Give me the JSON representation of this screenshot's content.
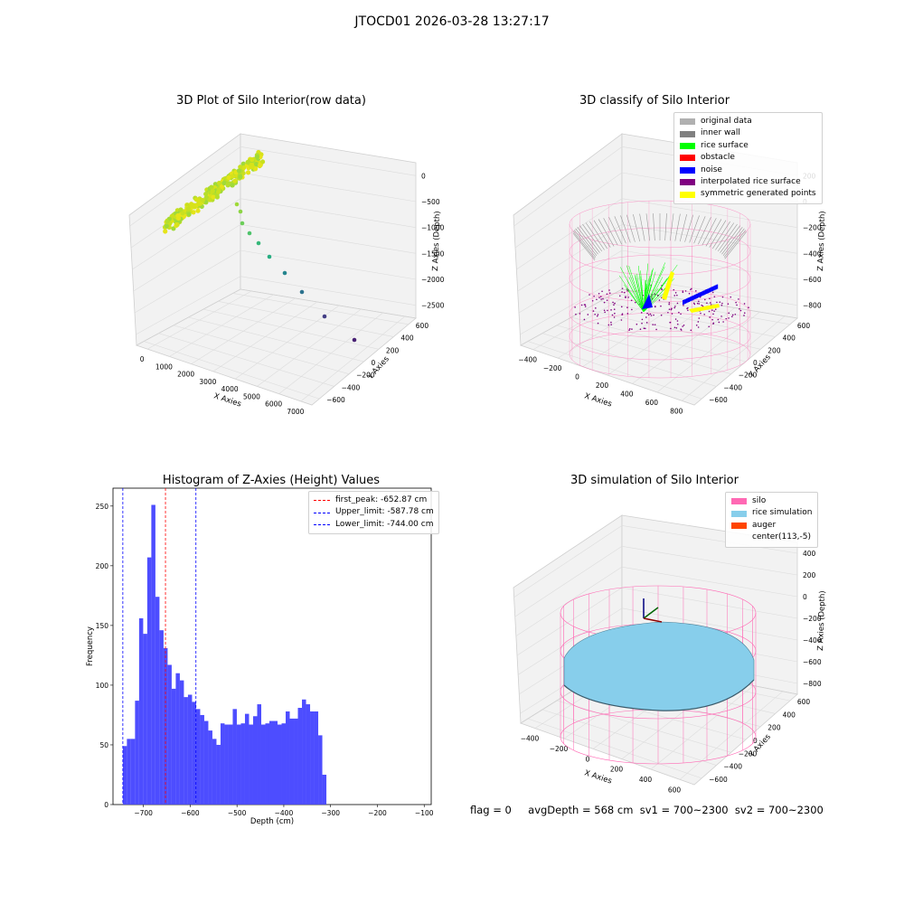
{
  "suptitle": "JTOCD01 2026-03-28 13:27:17",
  "panels": {
    "raw": {
      "title": "3D Plot of Silo Interior(row data)",
      "xlabel": "X Axies",
      "ylabel": "Y Axies",
      "zlabel": "Z Axies (Depth)",
      "xticks": [
        "0",
        "1000",
        "2000",
        "3000",
        "4000",
        "5000",
        "6000",
        "7000"
      ],
      "yticks": [
        "600",
        "400",
        "200",
        "0",
        "−200",
        "−400",
        "−600"
      ],
      "zticks": [
        "0",
        "−500",
        "−1000",
        "−1500",
        "−2000",
        "−2500"
      ]
    },
    "classify": {
      "title": "3D classify of Silo Interior",
      "xlabel": "X Axies",
      "ylabel": "Y Axies",
      "zlabel": "Z Axies (Depth)",
      "xticks": [
        "−400",
        "−200",
        "0",
        "200",
        "400",
        "600",
        "800"
      ],
      "yticks": [
        "600",
        "400",
        "200",
        "0",
        "−200",
        "−400",
        "−600"
      ],
      "zticks": [
        "200",
        "0",
        "−200",
        "−400",
        "−600",
        "−800"
      ],
      "legend": [
        {
          "label": "original data",
          "color": "#b0b0b0"
        },
        {
          "label": "inner wall",
          "color": "#808080"
        },
        {
          "label": "rice surface",
          "color": "#00ff00"
        },
        {
          "label": "obstacle",
          "color": "#ff0000"
        },
        {
          "label": "noise",
          "color": "#0000ff"
        },
        {
          "label": "interpolated rice surface",
          "color": "#800080"
        },
        {
          "label": "symmetric generated points",
          "color": "#ffff00"
        }
      ]
    },
    "simulation": {
      "title": "3D simulation of Silo Interior",
      "xlabel": "X Axies",
      "ylabel": "Y Axies",
      "zlabel": "Z Axies (Depth)",
      "xticks": [
        "−400",
        "−200",
        "0",
        "200",
        "400",
        "600"
      ],
      "yticks": [
        "600",
        "400",
        "200",
        "0",
        "−200",
        "−400",
        "−600"
      ],
      "zticks": [
        "400",
        "200",
        "0",
        "−200",
        "−400",
        "−600",
        "−800"
      ],
      "legend": [
        {
          "label": "silo",
          "color": "#ff69b4"
        },
        {
          "label": "rice simulation",
          "color": "#87ceeb"
        },
        {
          "label": "auger",
          "color": "#ff4500"
        },
        {
          "label": "center(113,-5)",
          "color": ""
        }
      ]
    }
  },
  "footer": {
    "flag": "flag = 0",
    "stats": "avgDepth = 568 cm  sv1 = 700~2300  sv2 = 700~2300"
  },
  "chart_data": {
    "type": "bar",
    "title": "Histogram of Z-Axies (Height) Values",
    "xlabel": "Depth (cm)",
    "ylabel": "Frequency",
    "xlim": [
      -765,
      -85
    ],
    "ylim": [
      0,
      265
    ],
    "xticks": [
      -700,
      -600,
      -500,
      -400,
      -300,
      -200,
      -100
    ],
    "yticks": [
      0,
      50,
      100,
      150,
      200,
      250
    ],
    "bin_start": -744,
    "bin_width": 8.7,
    "counts": [
      49,
      55,
      55,
      87,
      156,
      143,
      207,
      251,
      174,
      146,
      131,
      117,
      97,
      110,
      104,
      90,
      92,
      86,
      80,
      75,
      70,
      62,
      55,
      50,
      68,
      67,
      67,
      80,
      67,
      68,
      76,
      67,
      74,
      84,
      67,
      68,
      70,
      70,
      67,
      68,
      78,
      72,
      72,
      81,
      88,
      84,
      78,
      78,
      58,
      25
    ],
    "vlines": [
      {
        "label": "first_peak: -652.87 cm",
        "x": -652.87,
        "color": "#ff0000"
      },
      {
        "label": "Upper_limit: -587.78 cm",
        "x": -587.78,
        "color": "#0000ff"
      },
      {
        "label": "Lower_limit: -744.00 cm",
        "x": -744.0,
        "color": "#0000ff"
      }
    ],
    "bar_color": "#4d4dff"
  }
}
